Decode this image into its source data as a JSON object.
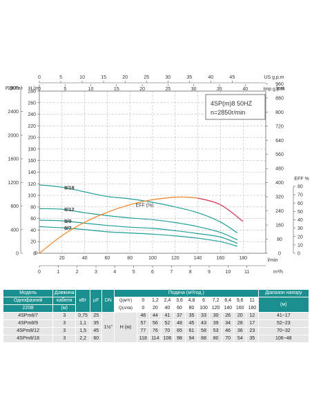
{
  "chart_data": {
    "type": "line",
    "model_label": "4SP(m)8  50HZ",
    "speed_label": "n=2850r/min",
    "x_flow_lmin": {
      "ticks": [
        0,
        20,
        40,
        60,
        80,
        100,
        120,
        140,
        160,
        180
      ],
      "unit": "l/min"
    },
    "x_flow_m3h": {
      "ticks": [
        0,
        1,
        2,
        3,
        4,
        5,
        6,
        7,
        8,
        9,
        10,
        11
      ],
      "unit": "m³/h"
    },
    "x_us_gpm": {
      "ticks": [
        0,
        5,
        10,
        15,
        20,
        25,
        30,
        35,
        40,
        45
      ],
      "unit": "US g.p.m"
    },
    "x_imp_gpm": {
      "ticks": [
        0,
        5,
        10,
        15,
        20,
        25,
        30,
        35,
        40
      ],
      "unit": "Imp g.p.m"
    },
    "y_head_m": {
      "ticks": [
        0,
        20,
        40,
        60,
        80,
        100,
        120,
        140,
        160,
        180,
        200,
        220,
        240,
        260,
        280
      ],
      "unit": "H (m)"
    },
    "y_pressure_kpa": {
      "ticks": [
        0,
        400,
        800,
        1200,
        1600,
        2000,
        2400,
        2800
      ],
      "unit": "P (KPa)"
    },
    "y_feet": {
      "ticks": [
        0,
        80,
        160,
        240,
        320,
        400,
        480,
        560,
        640,
        720,
        800,
        880,
        960
      ],
      "unit": "feet"
    },
    "y_eff": {
      "ticks": [
        0,
        10,
        20,
        30,
        40,
        50,
        60,
        70,
        80
      ],
      "unit": "EFF %"
    },
    "series": [
      {
        "name": "8/18",
        "x": [
          0,
          20,
          40,
          60,
          80,
          100,
          120,
          140,
          160,
          175
        ],
        "y": [
          118,
          114,
          106,
          98,
          94,
          88,
          80,
          70,
          54,
          35
        ]
      },
      {
        "name": "8/12",
        "x": [
          0,
          20,
          40,
          60,
          80,
          100,
          120,
          140,
          160,
          175
        ],
        "y": [
          77,
          76,
          70,
          65,
          61,
          58,
          53,
          46,
          36,
          23
        ]
      },
      {
        "name": "8/9",
        "x": [
          0,
          20,
          40,
          60,
          80,
          100,
          120,
          140,
          160,
          175
        ],
        "y": [
          57,
          56,
          52,
          48,
          45,
          43,
          39,
          34,
          28,
          17
        ]
      },
      {
        "name": "8/7",
        "x": [
          0,
          20,
          40,
          60,
          80,
          100,
          120,
          140,
          160,
          175
        ],
        "y": [
          46,
          44,
          41,
          37,
          35,
          33,
          30,
          26,
          20,
          12
        ]
      }
    ],
    "efficiency": {
      "name": "EFF (%)",
      "x": [
        0,
        20,
        40,
        60,
        80,
        100,
        120,
        130,
        140,
        160,
        180
      ],
      "y": [
        0,
        21,
        37,
        49,
        58,
        64,
        67,
        67,
        66,
        58,
        38
      ]
    }
  },
  "table": {
    "header": {
      "model": "Модель",
      "cable": "Довжина",
      "kw": "кВт",
      "uf": "µF",
      "dn": "DN",
      "flow_title": "Подача (м³/год.)",
      "range": "Діапазон напору",
      "single_phase": "Однофазний",
      "cable2": "кабеля",
      "q_m3h": "Q(м³/г)",
      "volt": "220В",
      "cable_unit": "(м)",
      "q_lmin": "Q(л/хв)",
      "range_unit": "(м)"
    },
    "q_m3h": [
      "0",
      "1,2",
      "2,4",
      "3,6",
      "4,8",
      "6",
      "7,2",
      "8,4",
      "9,6",
      "11"
    ],
    "q_lmin": [
      "0",
      "20",
      "40",
      "60",
      "80",
      "100",
      "120",
      "140",
      "160",
      "180"
    ],
    "dn": "1½\"",
    "h_label": "H (м)",
    "rows": [
      {
        "model": "4SPm8/7",
        "cable": "3",
        "kw": "0,75",
        "uf": "25",
        "h": [
          "46",
          "44",
          "41",
          "37",
          "35",
          "33",
          "30",
          "26",
          "20",
          "12"
        ],
        "range": "41~17"
      },
      {
        "model": "4SPm8/9",
        "cable": "3",
        "kw": "1,1",
        "uf": "35",
        "h": [
          "57",
          "56",
          "52",
          "48",
          "45",
          "43",
          "39",
          "34",
          "28",
          "17"
        ],
        "range": "52~23"
      },
      {
        "model": "4SPm8/12",
        "cable": "3",
        "kw": "1,5",
        "uf": "45",
        "h": [
          "77",
          "76",
          "70",
          "65",
          "61",
          "58",
          "53",
          "46",
          "36",
          "23"
        ],
        "range": "70~32"
      },
      {
        "model": "4SPm8/18",
        "cable": "3",
        "kw": "2,2",
        "uf": "60",
        "h": [
          "118",
          "114",
          "106",
          "98",
          "94",
          "88",
          "80",
          "70",
          "54",
          "35"
        ],
        "range": "106~48"
      }
    ]
  }
}
